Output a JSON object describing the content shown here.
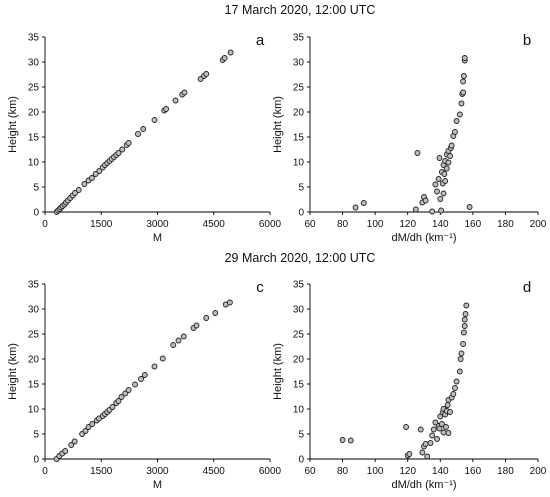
{
  "figure": {
    "title_top": "17 March 2020, 12:00 UTC",
    "title_bottom": "29 March 2020, 12:00 UTC"
  },
  "chart_data": [
    {
      "id": "a",
      "type": "scatter",
      "letter": "a",
      "xlabel": "M",
      "ylabel": "Height (km)",
      "xlim": [
        0,
        6000
      ],
      "ylim": [
        0,
        35
      ],
      "xticks": [
        0,
        1500,
        3000,
        4500,
        6000
      ],
      "yticks": [
        0,
        5,
        10,
        15,
        20,
        25,
        30,
        35
      ],
      "points": [
        [
          310,
          0
        ],
        [
          350,
          0.3
        ],
        [
          390,
          0.6
        ],
        [
          430,
          0.9
        ],
        [
          470,
          1.2
        ],
        [
          520,
          1.5
        ],
        [
          560,
          1.9
        ],
        [
          610,
          2.3
        ],
        [
          670,
          2.8
        ],
        [
          740,
          3.3
        ],
        [
          800,
          3.8
        ],
        [
          900,
          4.4
        ],
        [
          1050,
          5.6
        ],
        [
          1160,
          6.3
        ],
        [
          1250,
          6.8
        ],
        [
          1350,
          7.6
        ],
        [
          1450,
          8.2
        ],
        [
          1540,
          8.9
        ],
        [
          1600,
          9.4
        ],
        [
          1660,
          9.8
        ],
        [
          1720,
          10.2
        ],
        [
          1780,
          10.6
        ],
        [
          1840,
          11.0
        ],
        [
          1900,
          11.4
        ],
        [
          1960,
          11.8
        ],
        [
          2060,
          12.5
        ],
        [
          2180,
          13.4
        ],
        [
          2230,
          13.8
        ],
        [
          2480,
          15.6
        ],
        [
          2620,
          16.6
        ],
        [
          2920,
          18.4
        ],
        [
          3180,
          20.3
        ],
        [
          3230,
          20.6
        ],
        [
          3480,
          22.3
        ],
        [
          3660,
          23.5
        ],
        [
          3720,
          23.9
        ],
        [
          4150,
          26.6
        ],
        [
          4240,
          27.2
        ],
        [
          4300,
          27.6
        ],
        [
          4740,
          30.4
        ],
        [
          4790,
          30.8
        ],
        [
          4950,
          31.9
        ]
      ]
    },
    {
      "id": "b",
      "type": "scatter",
      "letter": "b",
      "xlabel": "dM/dh (km⁻¹)",
      "ylabel": "Height (km)",
      "xlim": [
        60,
        200
      ],
      "ylim": [
        0,
        35
      ],
      "xticks": [
        60,
        80,
        100,
        120,
        140,
        160,
        180,
        200
      ],
      "yticks": [
        0,
        5,
        10,
        15,
        20,
        25,
        30,
        35
      ],
      "points": [
        [
          88,
          0.9
        ],
        [
          93,
          1.8
        ],
        [
          125,
          0.5
        ],
        [
          126,
          11.8
        ],
        [
          129,
          1.9
        ],
        [
          130,
          3.0
        ],
        [
          131,
          2.3
        ],
        [
          135,
          0.1
        ],
        [
          137,
          5.5
        ],
        [
          138,
          4.1
        ],
        [
          139,
          6.6
        ],
        [
          139.5,
          10.8
        ],
        [
          140,
          2.6
        ],
        [
          140.5,
          0.3
        ],
        [
          141,
          8.0
        ],
        [
          141.5,
          5.7
        ],
        [
          142,
          9.4
        ],
        [
          142,
          3.7
        ],
        [
          142.5,
          7.6
        ],
        [
          143,
          10.2
        ],
        [
          143,
          6.2
        ],
        [
          144,
          11.5
        ],
        [
          144,
          8.7
        ],
        [
          145,
          12.2
        ],
        [
          145,
          9.9
        ],
        [
          146,
          11.2
        ],
        [
          146.5,
          12.8
        ],
        [
          147,
          13.3
        ],
        [
          148,
          15.2
        ],
        [
          149,
          16.0
        ],
        [
          150,
          18.2
        ],
        [
          152,
          19.5
        ],
        [
          153,
          21.7
        ],
        [
          153.5,
          23.6
        ],
        [
          154,
          23.9
        ],
        [
          154,
          26.1
        ],
        [
          154.5,
          27.2
        ],
        [
          155,
          30.3
        ],
        [
          155,
          30.8
        ],
        [
          158,
          1.0
        ]
      ]
    },
    {
      "id": "c",
      "type": "scatter",
      "letter": "c",
      "xlabel": "M",
      "ylabel": "Height (km)",
      "xlim": [
        0,
        6000
      ],
      "ylim": [
        0,
        35
      ],
      "xticks": [
        0,
        1500,
        3000,
        4500,
        6000
      ],
      "yticks": [
        0,
        5,
        10,
        15,
        20,
        25,
        30,
        35
      ],
      "points": [
        [
          310,
          0
        ],
        [
          380,
          0.6
        ],
        [
          460,
          1.1
        ],
        [
          540,
          1.6
        ],
        [
          700,
          2.8
        ],
        [
          790,
          3.5
        ],
        [
          990,
          5.0
        ],
        [
          1080,
          5.6
        ],
        [
          1160,
          6.4
        ],
        [
          1260,
          7.0
        ],
        [
          1380,
          7.7
        ],
        [
          1440,
          8.1
        ],
        [
          1540,
          8.6
        ],
        [
          1600,
          9.0
        ],
        [
          1660,
          9.4
        ],
        [
          1720,
          9.8
        ],
        [
          1800,
          10.4
        ],
        [
          1900,
          11.2
        ],
        [
          1960,
          11.6
        ],
        [
          2040,
          12.4
        ],
        [
          2140,
          13.1
        ],
        [
          2230,
          13.8
        ],
        [
          2400,
          14.9
        ],
        [
          2560,
          16.0
        ],
        [
          2660,
          16.8
        ],
        [
          2920,
          18.5
        ],
        [
          3140,
          20.1
        ],
        [
          3420,
          22.8
        ],
        [
          3560,
          23.7
        ],
        [
          3700,
          24.5
        ],
        [
          3960,
          26.2
        ],
        [
          4040,
          26.7
        ],
        [
          4300,
          28.2
        ],
        [
          4540,
          29.2
        ],
        [
          4820,
          30.9
        ],
        [
          4930,
          31.3
        ]
      ]
    },
    {
      "id": "d",
      "type": "scatter",
      "letter": "d",
      "xlabel": "dM/dh (km⁻¹)",
      "ylabel": "Height (km)",
      "xlim": [
        60,
        200
      ],
      "ylim": [
        0,
        35
      ],
      "xticks": [
        60,
        80,
        100,
        120,
        140,
        160,
        180,
        200
      ],
      "yticks": [
        0,
        5,
        10,
        15,
        20,
        25,
        30,
        35
      ],
      "points": [
        [
          80,
          3.8
        ],
        [
          85,
          3.7
        ],
        [
          119,
          6.4
        ],
        [
          120,
          0.7
        ],
        [
          121,
          1.0
        ],
        [
          128,
          5.9
        ],
        [
          129,
          1.3
        ],
        [
          130,
          2.5
        ],
        [
          131,
          3.0
        ],
        [
          132,
          0.5
        ],
        [
          134,
          3.2
        ],
        [
          135,
          4.7
        ],
        [
          136,
          5.9
        ],
        [
          137,
          7.3
        ],
        [
          138,
          4.0
        ],
        [
          139,
          6.6
        ],
        [
          139.5,
          6.1
        ],
        [
          140,
          8.5
        ],
        [
          141,
          7.0
        ],
        [
          141.5,
          9.3
        ],
        [
          142,
          5.3
        ],
        [
          142,
          10.0
        ],
        [
          143,
          8.9
        ],
        [
          143.5,
          6.4
        ],
        [
          144,
          9.6
        ],
        [
          144.5,
          10.8
        ],
        [
          145,
          5.2
        ],
        [
          145,
          11.8
        ],
        [
          146,
          9.4
        ],
        [
          147,
          12.3
        ],
        [
          148,
          13.0
        ],
        [
          149,
          14.2
        ],
        [
          150,
          15.5
        ],
        [
          152,
          17.5
        ],
        [
          152.5,
          20.0
        ],
        [
          153,
          21.1
        ],
        [
          154,
          23.0
        ],
        [
          154.5,
          25.3
        ],
        [
          155,
          26.6
        ],
        [
          155,
          27.9
        ],
        [
          155.5,
          29.0
        ],
        [
          156,
          30.7
        ]
      ]
    }
  ]
}
